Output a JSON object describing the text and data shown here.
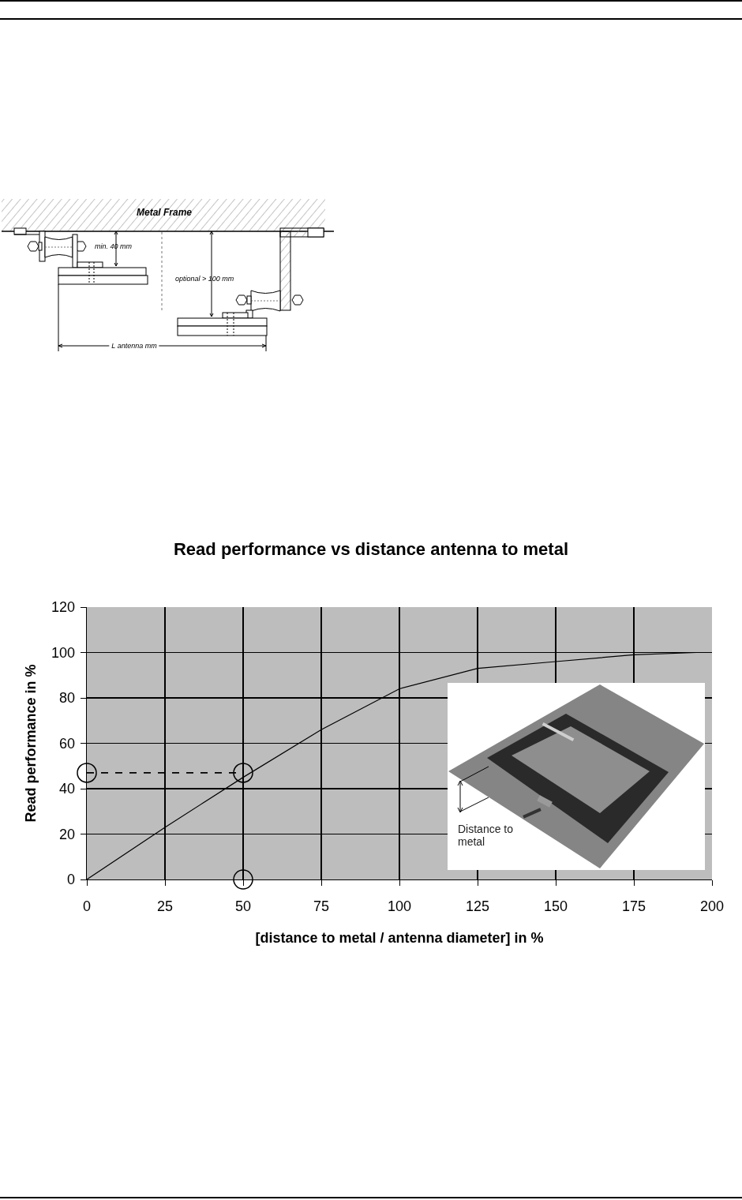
{
  "chart_data": {
    "type": "line",
    "title": "Read performance vs distance antenna to metal",
    "xlabel": "[distance to metal / antenna diameter] in %",
    "ylabel": "Read performance in %",
    "xlim": [
      0,
      200
    ],
    "xticks": [
      0,
      25,
      50,
      75,
      100,
      125,
      150,
      175,
      200
    ],
    "ylim": [
      0,
      120
    ],
    "yticks": [
      0,
      20,
      40,
      60,
      80,
      100,
      120
    ],
    "grid": true,
    "series": [
      {
        "color": "#000000",
        "x": [
          0,
          25,
          50,
          75,
          100,
          125,
          150,
          175,
          195
        ],
        "values": [
          0,
          23,
          45,
          66,
          84,
          93,
          96,
          99,
          100
        ]
      },
      {
        "color": "#000000",
        "line_style": "dashed",
        "x": [
          0,
          50
        ],
        "values": [
          47,
          47
        ]
      },
      {
        "type": "scatter",
        "color": "#000000",
        "marker": "circle",
        "x": [
          0,
          50,
          50
        ],
        "values": [
          47,
          47,
          0
        ]
      }
    ],
    "annotations": [
      "Metal Frame",
      "min. 40 mm",
      "optional > 100 mm",
      "L antenna mm",
      "Distance to metal"
    ]
  }
}
